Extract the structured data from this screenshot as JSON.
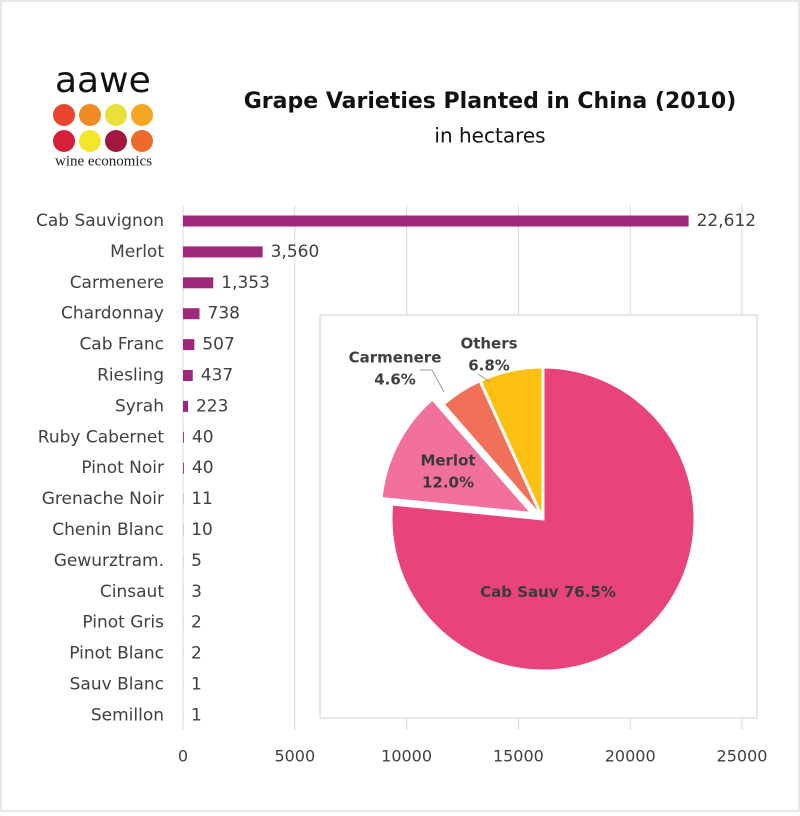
{
  "logo": {
    "name": "aawe",
    "tagline": "wine economics"
  },
  "chart_data": [
    {
      "type": "hbar",
      "title": "Grape Varieties Planted in China (2010)",
      "subtitle": "in hectares",
      "categories": [
        "Cab Sauvignon",
        "Merlot",
        "Carmenere",
        "Chardonnay",
        "Cab Franc",
        "Riesling",
        "Syrah",
        "Ruby Cabernet",
        "Pinot Noir",
        "Grenache Noir",
        "Chenin Blanc",
        "Gewurztram.",
        "Cinsaut",
        "Pinot Gris",
        "Pinot Blanc",
        "Sauv Blanc",
        "Semillon"
      ],
      "values": [
        22612,
        3560,
        1353,
        738,
        507,
        437,
        223,
        40,
        40,
        11,
        10,
        5,
        3,
        2,
        2,
        1,
        1
      ],
      "value_labels": [
        "22,612",
        "3,560",
        "1,353",
        "738",
        "507",
        "437",
        "223",
        "40",
        "40",
        "11",
        "10",
        "5",
        "3",
        "2",
        "2",
        "1",
        "1"
      ],
      "color": "#a0287c",
      "xlim": [
        0,
        25000
      ],
      "xticks": [
        0,
        5000,
        10000,
        15000,
        20000,
        25000
      ],
      "grid": true
    },
    {
      "type": "pie",
      "categories": [
        "Cab Sauv",
        "Merlot",
        "Carmenere",
        "Others"
      ],
      "values": [
        76.5,
        12.0,
        4.6,
        6.8
      ],
      "value_labels": [
        "76.5%",
        "12.0%",
        "4.6%",
        "6.8%"
      ],
      "colors": [
        "#e8437a",
        "#f2709c",
        "#f0705a",
        "#fcc010"
      ]
    }
  ]
}
